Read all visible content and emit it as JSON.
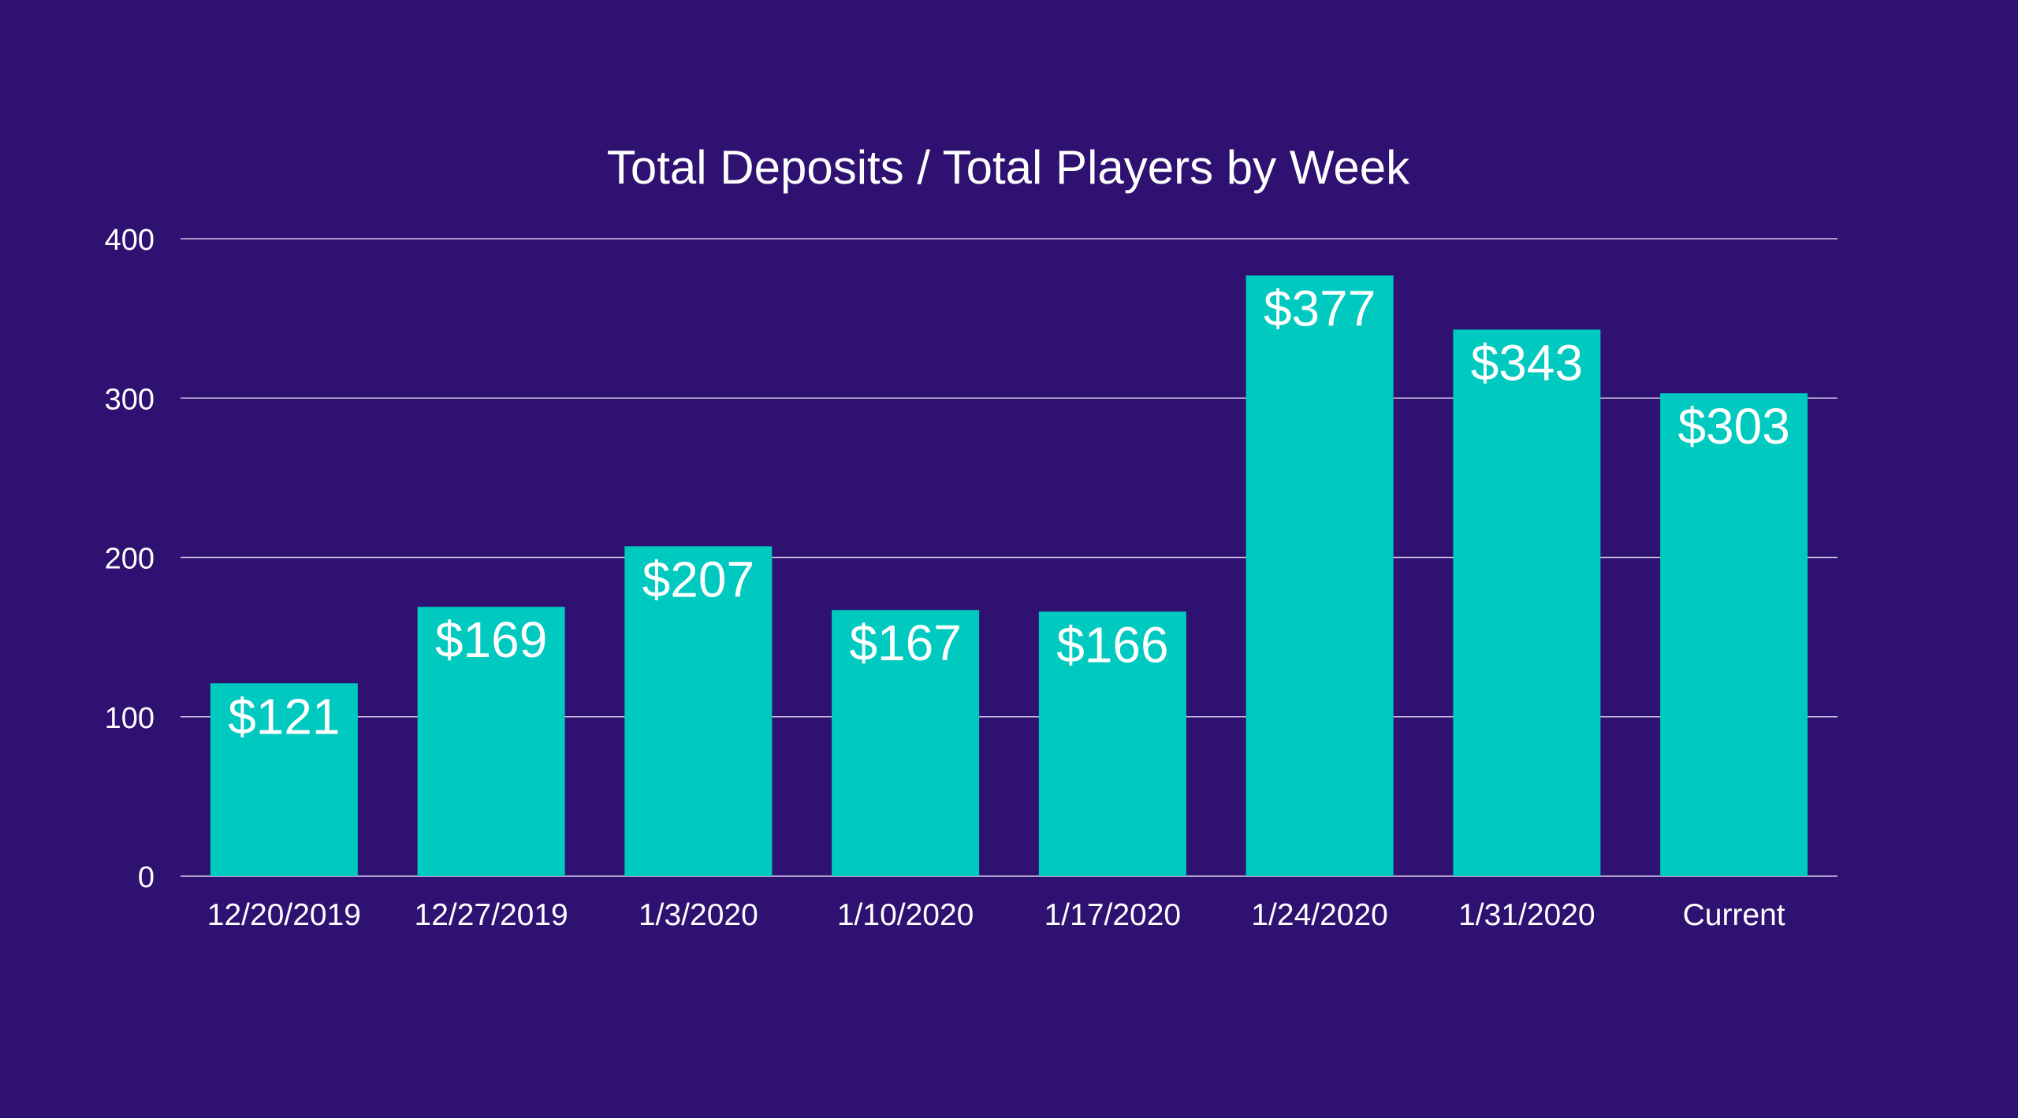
{
  "colors": {
    "background": "#2e1170",
    "bar": "#00c9c0",
    "gridline": "#cfc8e8",
    "text": "#ffffff"
  },
  "chart_data": {
    "type": "bar",
    "title": "Total Deposits / Total Players by Week",
    "xlabel": "",
    "ylabel": "",
    "categories": [
      "12/20/2019",
      "12/27/2019",
      "1/3/2020",
      "1/10/2020",
      "1/17/2020",
      "1/24/2020",
      "1/31/2020",
      "Current"
    ],
    "values": [
      121,
      169,
      207,
      167,
      166,
      377,
      343,
      303
    ],
    "data_labels": [
      "$121",
      "$169",
      "$207",
      "$167",
      "$166",
      "$377",
      "$343",
      "$303"
    ],
    "ylim": [
      0,
      400
    ],
    "yticks": [
      0,
      100,
      200,
      300,
      400
    ],
    "ytick_labels": [
      "0",
      "100",
      "200",
      "300",
      "400"
    ],
    "grid": true,
    "legend": "none"
  }
}
